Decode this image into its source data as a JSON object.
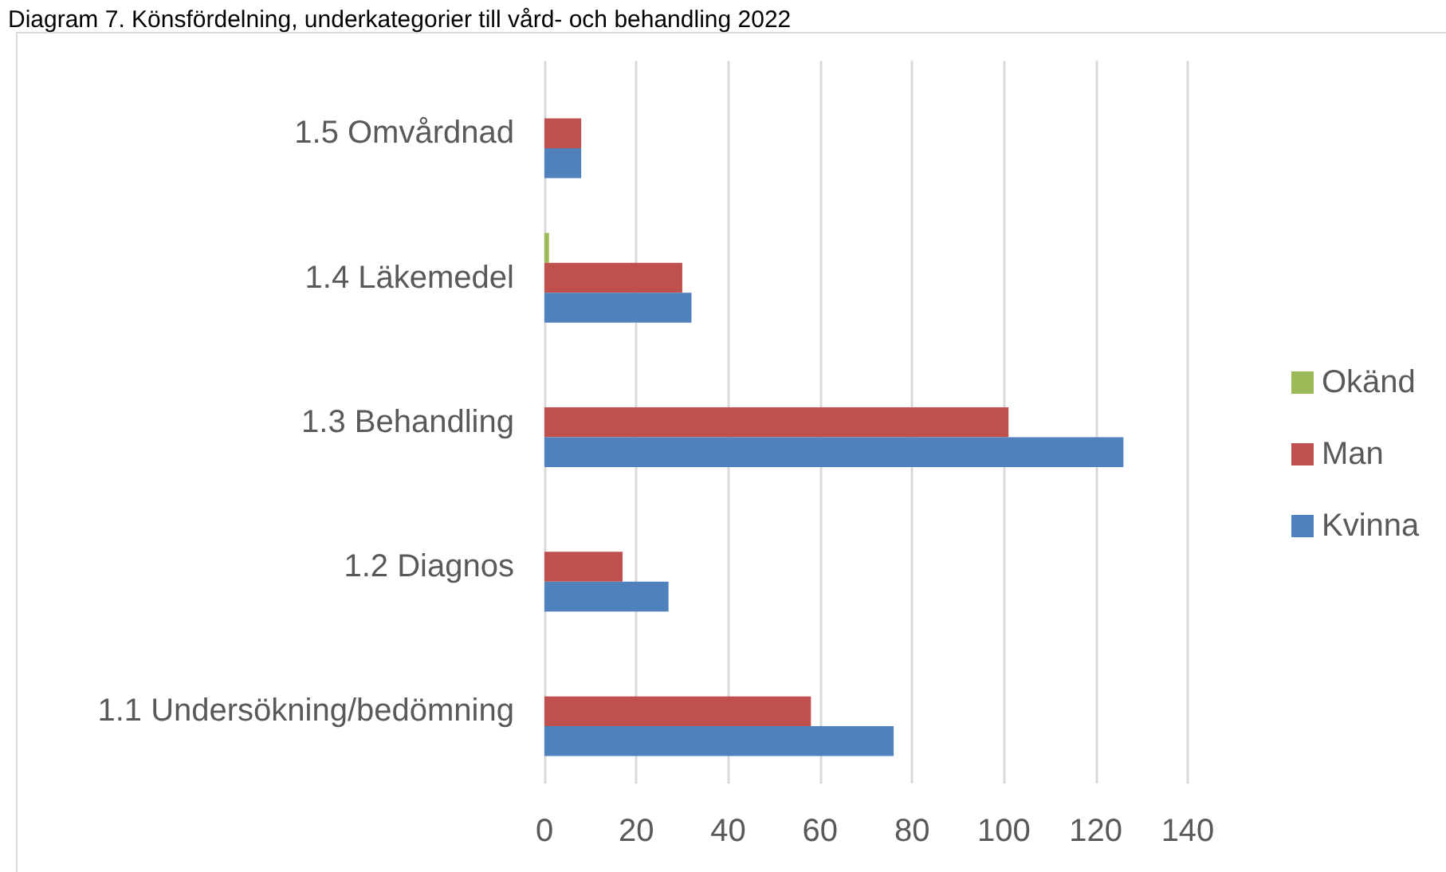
{
  "chart_data": {
    "type": "bar",
    "orientation": "horizontal",
    "title": "Diagram 7. Könsfördelning, underkategorier till vård- och behandling 2022",
    "categories": [
      "1.5 Omvårdnad",
      "1.4 Läkemedel",
      "1.3 Behandling",
      "1.2 Diagnos",
      "1.1 Undersökning/bedömning"
    ],
    "series": [
      {
        "name": "Okänd",
        "color": "#9bbb59",
        "values": [
          null,
          1,
          null,
          null,
          null
        ]
      },
      {
        "name": "Man",
        "color": "#c0504d",
        "values": [
          8,
          30,
          101,
          17,
          58
        ]
      },
      {
        "name": "Kvinna",
        "color": "#4f81bd",
        "values": [
          8,
          32,
          126,
          27,
          76
        ]
      }
    ],
    "xlim": [
      0,
      140
    ],
    "xticks": [
      0,
      20,
      40,
      60,
      80,
      100,
      120,
      140
    ],
    "grid": "x",
    "legend": "right"
  }
}
